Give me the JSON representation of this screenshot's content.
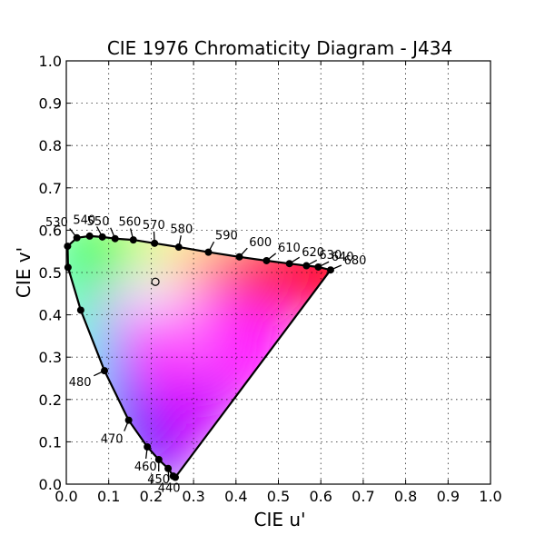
{
  "chart_data": {
    "type": "scatter",
    "title": "CIE 1976 Chromaticity Diagram - J434",
    "xlabel": "CIE u'",
    "ylabel": "CIE v'",
    "xlim": [
      0.0,
      1.0
    ],
    "ylim": [
      0.0,
      1.0
    ],
    "x_ticks": [
      "0.0",
      "0.1",
      "0.2",
      "0.3",
      "0.4",
      "0.5",
      "0.6",
      "0.7",
      "0.8",
      "0.9",
      "1.0"
    ],
    "y_ticks": [
      "0.0",
      "0.1",
      "0.2",
      "0.3",
      "0.4",
      "0.5",
      "0.6",
      "0.7",
      "0.8",
      "0.9",
      "1.0"
    ],
    "grid": true,
    "spectral_locus": [
      {
        "u": 0.257,
        "v": 0.016
      },
      {
        "u": 0.252,
        "v": 0.019
      },
      {
        "u": 0.24,
        "v": 0.037
      },
      {
        "u": 0.218,
        "v": 0.058
      },
      {
        "u": 0.191,
        "v": 0.088
      },
      {
        "u": 0.147,
        "v": 0.151
      },
      {
        "u": 0.09,
        "v": 0.268
      },
      {
        "u": 0.034,
        "v": 0.411
      },
      {
        "u": 0.004,
        "v": 0.512
      },
      {
        "u": 0.003,
        "v": 0.562
      },
      {
        "u": 0.025,
        "v": 0.582
      },
      {
        "u": 0.055,
        "v": 0.586
      },
      {
        "u": 0.085,
        "v": 0.584
      },
      {
        "u": 0.115,
        "v": 0.58
      },
      {
        "u": 0.158,
        "v": 0.577
      },
      {
        "u": 0.208,
        "v": 0.569
      },
      {
        "u": 0.265,
        "v": 0.56
      },
      {
        "u": 0.335,
        "v": 0.548
      },
      {
        "u": 0.408,
        "v": 0.537
      },
      {
        "u": 0.472,
        "v": 0.528
      },
      {
        "u": 0.526,
        "v": 0.521
      },
      {
        "u": 0.566,
        "v": 0.516
      },
      {
        "u": 0.594,
        "v": 0.513
      },
      {
        "u": 0.623,
        "v": 0.506
      }
    ],
    "wavelength_labels": [
      {
        "label": "440",
        "u": 0.24,
        "v": 0.037
      },
      {
        "label": "450",
        "u": 0.218,
        "v": 0.058
      },
      {
        "label": "460",
        "u": 0.191,
        "v": 0.088
      },
      {
        "label": "470",
        "u": 0.147,
        "v": 0.151
      },
      {
        "label": "480",
        "u": 0.09,
        "v": 0.268
      },
      {
        "label": "530",
        "u": 0.025,
        "v": 0.582
      },
      {
        "label": "540",
        "u": 0.085,
        "v": 0.584
      },
      {
        "label": "550",
        "u": 0.115,
        "v": 0.58
      },
      {
        "label": "560",
        "u": 0.158,
        "v": 0.577
      },
      {
        "label": "570",
        "u": 0.208,
        "v": 0.569
      },
      {
        "label": "580",
        "u": 0.265,
        "v": 0.56
      },
      {
        "label": "590",
        "u": 0.335,
        "v": 0.548
      },
      {
        "label": "600",
        "u": 0.408,
        "v": 0.537
      },
      {
        "label": "610",
        "u": 0.472,
        "v": 0.528
      },
      {
        "label": "620",
        "u": 0.526,
        "v": 0.521
      },
      {
        "label": "630",
        "u": 0.566,
        "v": 0.516
      },
      {
        "label": "640",
        "u": 0.594,
        "v": 0.513
      },
      {
        "label": "680",
        "u": 0.623,
        "v": 0.506
      }
    ],
    "white_point": {
      "u": 0.21,
      "v": 0.478
    }
  }
}
